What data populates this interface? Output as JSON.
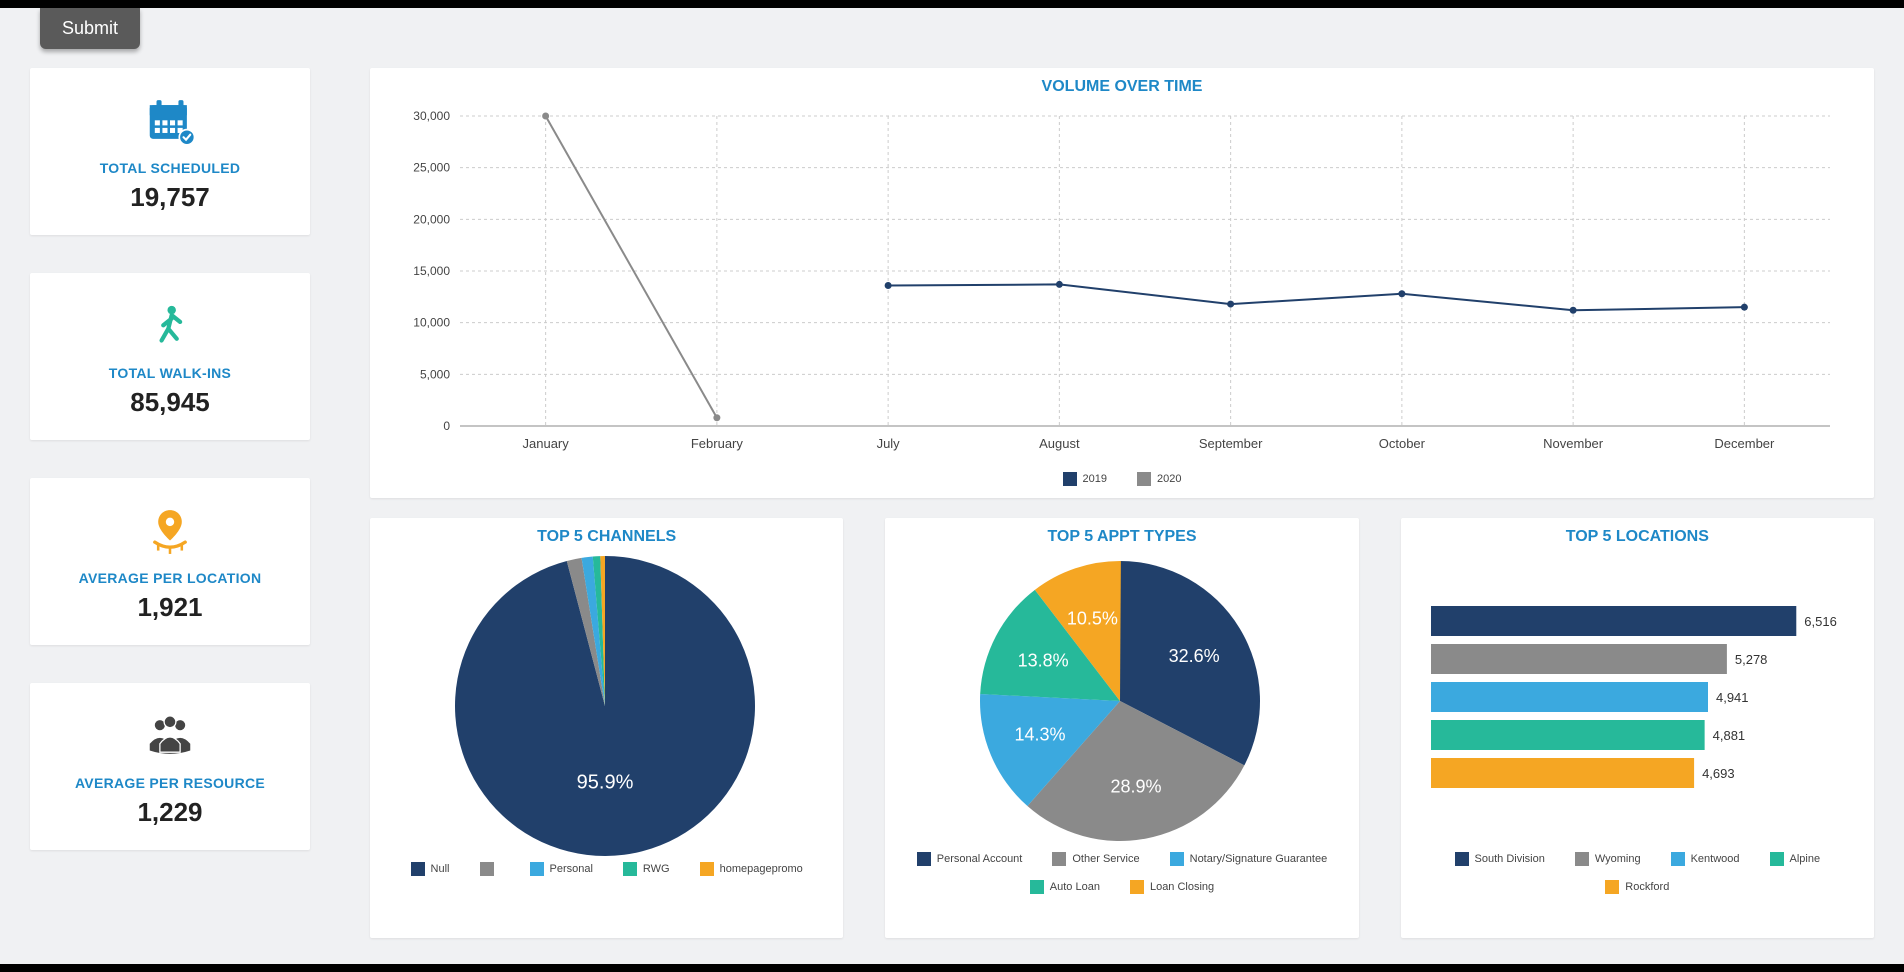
{
  "submit_label": "Submit",
  "colors": {
    "brand_blue": "#1e88c7",
    "navy": "#21406b",
    "grey": "#8a8a8a",
    "cyan": "#3ba9df",
    "teal": "#26b99a",
    "orange": "#f5a623",
    "bg": "#f0f1f3",
    "grid": "#cccccc"
  },
  "kpis": [
    {
      "id": "total-scheduled",
      "icon": "calendar",
      "icon_color": "#1e88c7",
      "label": "TOTAL SCHEDULED",
      "value": "19,757"
    },
    {
      "id": "total-walkins",
      "icon": "walker",
      "icon_color": "#26b99a",
      "label": "TOTAL WALK-INS",
      "value": "85,945"
    },
    {
      "id": "avg-per-location",
      "icon": "location",
      "icon_color": "#f5a623",
      "label": "AVERAGE PER LOCATION",
      "value": "1,921"
    },
    {
      "id": "avg-per-resource",
      "icon": "people",
      "icon_color": "#444444",
      "label": "AVERAGE PER RESOURCE",
      "value": "1,229"
    }
  ],
  "volume_chart": {
    "title": "VOLUME OVER TIME",
    "y_ticks": [
      0,
      5000,
      10000,
      15000,
      20000,
      25000,
      30000
    ],
    "y_tick_labels": [
      "0",
      "5,000",
      "10,000",
      "15,000",
      "20,000",
      "25,000",
      "30,000"
    ],
    "ylim": [
      0,
      30000
    ],
    "x_categories": [
      "January",
      "February",
      "July",
      "August",
      "September",
      "October",
      "November",
      "December"
    ],
    "series": [
      {
        "name": "2019",
        "color": "#21406b",
        "points": [
          {
            "x": "July",
            "y": 13600
          },
          {
            "x": "August",
            "y": 13700
          },
          {
            "x": "September",
            "y": 11800
          },
          {
            "x": "October",
            "y": 12800
          },
          {
            "x": "November",
            "y": 11200
          },
          {
            "x": "December",
            "y": 11500
          }
        ]
      },
      {
        "name": "2020",
        "color": "#8a8a8a",
        "points": [
          {
            "x": "January",
            "y": 30000
          },
          {
            "x": "February",
            "y": 800
          }
        ]
      }
    ]
  },
  "top_channels": {
    "title": "TOP 5 CHANNELS",
    "type": "pie",
    "big_pct_label": "95.9%",
    "slices": [
      {
        "label": "Null",
        "color": "#21406b",
        "pct": 95.9
      },
      {
        "label": "",
        "color": "#8a8a8a",
        "pct": 1.6
      },
      {
        "label": "Personal",
        "color": "#3ba9df",
        "pct": 1.2
      },
      {
        "label": "RWG",
        "color": "#26b99a",
        "pct": 0.8
      },
      {
        "label": "homepagepromo",
        "color": "#f5a623",
        "pct": 0.5
      }
    ],
    "legend": [
      {
        "label": "Null",
        "color": "#21406b"
      },
      {
        "label": "",
        "color": "#8a8a8a"
      },
      {
        "label": "Personal",
        "color": "#3ba9df"
      },
      {
        "label": "RWG",
        "color": "#26b99a"
      },
      {
        "label": "homepagepromo",
        "color": "#f5a623"
      }
    ]
  },
  "top_appt_types": {
    "title": "TOP 5 APPT TYPES",
    "type": "pie",
    "slices": [
      {
        "label": "Personal Account",
        "color": "#21406b",
        "pct": 32.6,
        "pct_label": "32.6%"
      },
      {
        "label": "Other Service",
        "color": "#8a8a8a",
        "pct": 28.9,
        "pct_label": "28.9%"
      },
      {
        "label": "Notary/Signature Guarantee",
        "color": "#3ba9df",
        "pct": 14.3,
        "pct_label": "14.3%"
      },
      {
        "label": "Auto Loan",
        "color": "#26b99a",
        "pct": 13.8,
        "pct_label": "13.8%"
      },
      {
        "label": "Loan Closing",
        "color": "#f5a623",
        "pct": 10.5,
        "pct_label": "10.5%"
      }
    ],
    "legend": [
      {
        "label": "Personal Account",
        "color": "#21406b"
      },
      {
        "label": "Other Service",
        "color": "#8a8a8a"
      },
      {
        "label": "Notary/Signature Guarantee",
        "color": "#3ba9df"
      },
      {
        "label": "Auto Loan",
        "color": "#26b99a"
      },
      {
        "label": "Loan Closing",
        "color": "#f5a623"
      }
    ]
  },
  "top_locations": {
    "title": "TOP 5 LOCATIONS",
    "type": "hbar",
    "max": 6600,
    "bars": [
      {
        "label": "South Division",
        "color": "#21406b",
        "value": 6516,
        "value_label": "6,516"
      },
      {
        "label": "Wyoming",
        "color": "#8a8a8a",
        "value": 5278,
        "value_label": "5,278"
      },
      {
        "label": "Kentwood",
        "color": "#3ba9df",
        "value": 4941,
        "value_label": "4,941"
      },
      {
        "label": "Alpine",
        "color": "#26b99a",
        "value": 4881,
        "value_label": "4,881"
      },
      {
        "label": "Rockford",
        "color": "#f5a623",
        "value": 4693,
        "value_label": "4,693"
      }
    ],
    "legend": [
      {
        "label": "South Division",
        "color": "#21406b"
      },
      {
        "label": "Wyoming",
        "color": "#8a8a8a"
      },
      {
        "label": "Kentwood",
        "color": "#3ba9df"
      },
      {
        "label": "Alpine",
        "color": "#26b99a"
      },
      {
        "label": "Rockford",
        "color": "#f5a623"
      }
    ]
  }
}
